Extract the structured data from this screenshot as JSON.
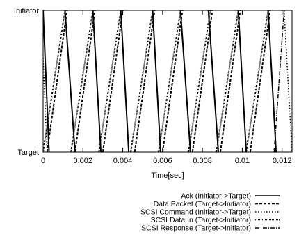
{
  "chart_data": {
    "type": "line",
    "title": "",
    "xlabel": "Time[sec]",
    "ylabel": "",
    "xlim": [
      0,
      0.0125
    ],
    "x_ticks": [
      0,
      0.002,
      0.004,
      0.006,
      0.008,
      0.01,
      0.012
    ],
    "x_tick_labels": [
      "0",
      "0.002",
      "0.004",
      "0.006",
      "0.008",
      "0.01",
      "0.012"
    ],
    "y_categories": [
      "Target",
      "Initiator"
    ],
    "grid": false,
    "legend_position": "bottom-right",
    "series": [
      {
        "name": "Ack (Initiator->Target)",
        "style": "solid",
        "transitions": [
          {
            "from": "Initiator",
            "to": "Target",
            "t_start": 0.0,
            "t_end": 0.0003
          },
          {
            "from": "Initiator",
            "to": "Target",
            "t_start": 0.0011,
            "t_end": 0.0016
          },
          {
            "from": "Initiator",
            "to": "Target",
            "t_start": 0.0025,
            "t_end": 0.0029
          },
          {
            "from": "Initiator",
            "to": "Target",
            "t_start": 0.0039,
            "t_end": 0.0043
          },
          {
            "from": "Initiator",
            "to": "Target",
            "t_start": 0.0055,
            "t_end": 0.0059
          },
          {
            "from": "Initiator",
            "to": "Target",
            "t_start": 0.0069,
            "t_end": 0.0074
          },
          {
            "from": "Initiator",
            "to": "Target",
            "t_start": 0.0083,
            "t_end": 0.0088
          },
          {
            "from": "Initiator",
            "to": "Target",
            "t_start": 0.0098,
            "t_end": 0.0102
          },
          {
            "from": "Initiator",
            "to": "Target",
            "t_start": 0.0113,
            "t_end": 0.0117
          }
        ]
      },
      {
        "name": "Data Packet (Target->Initiator)",
        "style": "dashed",
        "transitions": [
          {
            "from": "Target",
            "to": "Initiator",
            "t_start": 0.0002,
            "t_end": 0.0012
          },
          {
            "from": "Target",
            "to": "Initiator",
            "t_start": 0.0016,
            "t_end": 0.0026
          },
          {
            "from": "Target",
            "to": "Initiator",
            "t_start": 0.003,
            "t_end": 0.004
          },
          {
            "from": "Target",
            "to": "Initiator",
            "t_start": 0.0046,
            "t_end": 0.0056
          },
          {
            "from": "Target",
            "to": "Initiator",
            "t_start": 0.006,
            "t_end": 0.007
          },
          {
            "from": "Target",
            "to": "Initiator",
            "t_start": 0.0075,
            "t_end": 0.0085
          },
          {
            "from": "Target",
            "to": "Initiator",
            "t_start": 0.0089,
            "t_end": 0.0099
          },
          {
            "from": "Target",
            "to": "Initiator",
            "t_start": 0.0104,
            "t_end": 0.0114
          }
        ]
      },
      {
        "name": "SCSI Command (Initiator->Target)",
        "style": "dotted",
        "transitions": [
          {
            "from": "Initiator",
            "to": "Target",
            "t_start": -0.0001,
            "t_end": 0.0002
          },
          {
            "from": "Initiator",
            "to": "Target",
            "t_start": 0.0121,
            "t_end": 0.0125
          }
        ]
      },
      {
        "name": "SCSI Data In (Target->Initiator)",
        "style": "densely-dotted",
        "transitions": [
          {
            "from": "Target",
            "to": "Initiator",
            "t_start": 0.0,
            "t_end": 0.0011
          },
          {
            "from": "Target",
            "to": "Initiator",
            "t_start": 0.0014,
            "t_end": 0.0025
          },
          {
            "from": "Target",
            "to": "Initiator",
            "t_start": 0.0028,
            "t_end": 0.0039
          },
          {
            "from": "Target",
            "to": "Initiator",
            "t_start": 0.0044,
            "t_end": 0.0055
          },
          {
            "from": "Target",
            "to": "Initiator",
            "t_start": 0.0058,
            "t_end": 0.0069
          },
          {
            "from": "Target",
            "to": "Initiator",
            "t_start": 0.0073,
            "t_end": 0.0084
          },
          {
            "from": "Target",
            "to": "Initiator",
            "t_start": 0.0087,
            "t_end": 0.0098
          },
          {
            "from": "Target",
            "to": "Initiator",
            "t_start": 0.0102,
            "t_end": 0.0113
          }
        ]
      },
      {
        "name": "SCSI Response (Target->Initiator)",
        "style": "dash-dot",
        "transitions": [
          {
            "from": "Target",
            "to": "Initiator",
            "t_start": 0.0116,
            "t_end": 0.0121
          }
        ]
      }
    ]
  }
}
